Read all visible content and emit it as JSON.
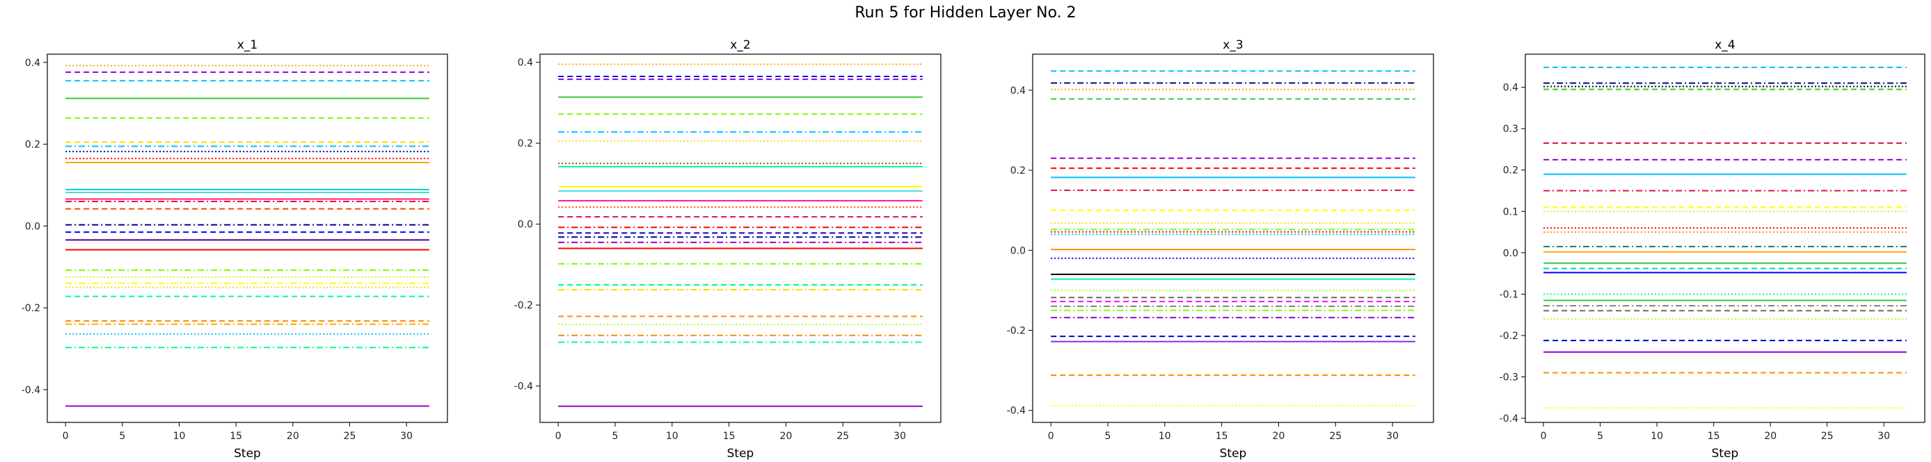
{
  "figure": {
    "suptitle": "Run 5 for Hidden Layer No. 2"
  },
  "chart_data": [
    {
      "type": "line",
      "title": "x_1",
      "xlabel": "Step",
      "ylabel": "",
      "xlim": [
        -1.6,
        33.6
      ],
      "ylim": [
        -0.48,
        0.42
      ],
      "xticks": [
        0,
        5,
        10,
        15,
        20,
        25,
        30
      ],
      "yticks": [
        -0.4,
        -0.2,
        0.0,
        0.2,
        0.4
      ],
      "ytick_labels": [
        "-0.4",
        "-0.2",
        "0.0",
        "0.2",
        "0.4"
      ],
      "x_range": [
        0,
        32
      ],
      "grid": false,
      "series": [
        {
          "value": 0.392,
          "color": "#ffa500",
          "dash": "dotted"
        },
        {
          "value": 0.376,
          "color": "#9400d3",
          "dash": "dashed"
        },
        {
          "value": 0.355,
          "color": "#00bfff",
          "dash": "dashed"
        },
        {
          "value": 0.312,
          "color": "#32cd32",
          "dash": "solid"
        },
        {
          "value": 0.264,
          "color": "#7cfc00",
          "dash": "dashed"
        },
        {
          "value": 0.205,
          "color": "#ffd700",
          "dash": "dashed"
        },
        {
          "value": 0.195,
          "color": "#00bfff",
          "dash": "dashdot"
        },
        {
          "value": 0.182,
          "color": "#0000cd",
          "dash": "dotted"
        },
        {
          "value": 0.165,
          "color": "#ff0000",
          "dash": "dotted"
        },
        {
          "value": 0.155,
          "color": "#ffa500",
          "dash": "solid"
        },
        {
          "value": 0.089,
          "color": "#00ced1",
          "dash": "solid"
        },
        {
          "value": 0.082,
          "color": "#40e0d0",
          "dash": "solid"
        },
        {
          "value": 0.066,
          "color": "#ff1493",
          "dash": "solid"
        },
        {
          "value": 0.06,
          "color": "#ff0000",
          "dash": "dashdot"
        },
        {
          "value": 0.042,
          "color": "#ff4500",
          "dash": "dashed"
        },
        {
          "value": 0.003,
          "color": "#00008b",
          "dash": "dashdot"
        },
        {
          "value": -0.015,
          "color": "#0000ff",
          "dash": "dashed"
        },
        {
          "value": -0.034,
          "color": "#4b0082",
          "dash": "solid"
        },
        {
          "value": -0.058,
          "color": "#ff0000",
          "dash": "solid"
        },
        {
          "value": -0.108,
          "color": "#7cfc00",
          "dash": "dashdot"
        },
        {
          "value": -0.125,
          "color": "#adff2f",
          "dash": "dotted"
        },
        {
          "value": -0.14,
          "color": "#ffff00",
          "dash": "dashdot"
        },
        {
          "value": -0.15,
          "color": "#ffd700",
          "dash": "dotted"
        },
        {
          "value": -0.172,
          "color": "#00fa9a",
          "dash": "dashed"
        },
        {
          "value": -0.232,
          "color": "#ff8c00",
          "dash": "dashed"
        },
        {
          "value": -0.24,
          "color": "#ffa500",
          "dash": "dashdot"
        },
        {
          "value": -0.264,
          "color": "#00bfff",
          "dash": "dotted"
        },
        {
          "value": -0.297,
          "color": "#00ff7f",
          "dash": "dashdot"
        },
        {
          "value": -0.44,
          "color": "#9400d3",
          "dash": "solid"
        }
      ]
    },
    {
      "type": "line",
      "title": "x_2",
      "xlabel": "Step",
      "ylabel": "",
      "xlim": [
        -1.6,
        33.6
      ],
      "ylim": [
        -0.49,
        0.42
      ],
      "xticks": [
        0,
        5,
        10,
        15,
        20,
        25,
        30
      ],
      "yticks": [
        -0.4,
        -0.2,
        0.0,
        0.2,
        0.4
      ],
      "ytick_labels": [
        "-0.4",
        "-0.2",
        "0.0",
        "0.2",
        "0.4"
      ],
      "x_range": [
        0,
        32
      ],
      "grid": false,
      "series": [
        {
          "value": 0.395,
          "color": "#ffa500",
          "dash": "dotted"
        },
        {
          "value": 0.365,
          "color": "#0000ff",
          "dash": "dashed"
        },
        {
          "value": 0.358,
          "color": "#9400d3",
          "dash": "dashed"
        },
        {
          "value": 0.314,
          "color": "#32cd32",
          "dash": "solid"
        },
        {
          "value": 0.272,
          "color": "#7cfc00",
          "dash": "dashed"
        },
        {
          "value": 0.228,
          "color": "#00bfff",
          "dash": "dashdot"
        },
        {
          "value": 0.205,
          "color": "#ffd700",
          "dash": "dotted"
        },
        {
          "value": 0.15,
          "color": "#8b4513",
          "dash": "dotted"
        },
        {
          "value": 0.142,
          "color": "#00fa9a",
          "dash": "solid"
        },
        {
          "value": 0.093,
          "color": "#ffff00",
          "dash": "solid"
        },
        {
          "value": 0.082,
          "color": "#40e0d0",
          "dash": "solid"
        },
        {
          "value": 0.058,
          "color": "#ff1493",
          "dash": "solid"
        },
        {
          "value": 0.042,
          "color": "#ff4500",
          "dash": "dotted"
        },
        {
          "value": 0.018,
          "color": "#dc143c",
          "dash": "dashed"
        },
        {
          "value": -0.008,
          "color": "#ff0000",
          "dash": "dashdot"
        },
        {
          "value": -0.022,
          "color": "#0000cd",
          "dash": "dashed"
        },
        {
          "value": -0.032,
          "color": "#00008b",
          "dash": "dashdot"
        },
        {
          "value": -0.045,
          "color": "#9400d3",
          "dash": "dashdot"
        },
        {
          "value": -0.06,
          "color": "#ff0000",
          "dash": "solid"
        },
        {
          "value": -0.098,
          "color": "#7cfc00",
          "dash": "dashdot"
        },
        {
          "value": -0.15,
          "color": "#00ff7f",
          "dash": "dashed"
        },
        {
          "value": -0.162,
          "color": "#ffd700",
          "dash": "dashdot"
        },
        {
          "value": -0.228,
          "color": "#ff8c00",
          "dash": "dashed"
        },
        {
          "value": -0.248,
          "color": "#adff2f",
          "dash": "dotted"
        },
        {
          "value": -0.275,
          "color": "#ff8c00",
          "dash": "dashdot"
        },
        {
          "value": -0.292,
          "color": "#00fa9a",
          "dash": "dashdot"
        },
        {
          "value": -0.45,
          "color": "#9400d3",
          "dash": "solid"
        }
      ]
    },
    {
      "type": "line",
      "title": "x_3",
      "xlabel": "Step",
      "ylabel": "",
      "xlim": [
        -1.6,
        33.6
      ],
      "ylim": [
        -0.43,
        0.49
      ],
      "xticks": [
        0,
        5,
        10,
        15,
        20,
        25,
        30
      ],
      "yticks": [
        -0.4,
        -0.2,
        0.0,
        0.2,
        0.4
      ],
      "ytick_labels": [
        "-0.4",
        "-0.2",
        "0.0",
        "0.2",
        "0.4"
      ],
      "x_range": [
        0,
        32
      ],
      "grid": false,
      "series": [
        {
          "value": 0.448,
          "color": "#00bfff",
          "dash": "dashed"
        },
        {
          "value": 0.418,
          "color": "#00008b",
          "dash": "dashdot"
        },
        {
          "value": 0.402,
          "color": "#ffa500",
          "dash": "dotted"
        },
        {
          "value": 0.378,
          "color": "#32cd32",
          "dash": "dashed"
        },
        {
          "value": 0.23,
          "color": "#9400d3",
          "dash": "dashed"
        },
        {
          "value": 0.205,
          "color": "#ff0000",
          "dash": "dashed"
        },
        {
          "value": 0.182,
          "color": "#00bfff",
          "dash": "solid"
        },
        {
          "value": 0.15,
          "color": "#dc143c",
          "dash": "dashdot"
        },
        {
          "value": 0.1,
          "color": "#ffff00",
          "dash": "dashed"
        },
        {
          "value": 0.068,
          "color": "#ffd700",
          "dash": "dotted"
        },
        {
          "value": 0.052,
          "color": "#7cfc00",
          "dash": "dashdot"
        },
        {
          "value": 0.046,
          "color": "#ff0000",
          "dash": "dotted"
        },
        {
          "value": 0.04,
          "color": "#00ced1",
          "dash": "dotted"
        },
        {
          "value": 0.002,
          "color": "#ff8c00",
          "dash": "solid"
        },
        {
          "value": -0.02,
          "color": "#0000ff",
          "dash": "dotted"
        },
        {
          "value": -0.06,
          "color": "#000000",
          "dash": "solid"
        },
        {
          "value": -0.072,
          "color": "#00fa9a",
          "dash": "solid"
        },
        {
          "value": -0.1,
          "color": "#adff2f",
          "dash": "dotted"
        },
        {
          "value": -0.118,
          "color": "#696969",
          "dash": "dashed"
        },
        {
          "value": -0.128,
          "color": "#ff00ff",
          "dash": "dashed"
        },
        {
          "value": -0.14,
          "color": "#808080",
          "dash": "dashdot"
        },
        {
          "value": -0.15,
          "color": "#7fff00",
          "dash": "dashdot"
        },
        {
          "value": -0.168,
          "color": "#9400d3",
          "dash": "dashdot"
        },
        {
          "value": -0.215,
          "color": "#0000cd",
          "dash": "dashed"
        },
        {
          "value": -0.228,
          "color": "#8a2be2",
          "dash": "solid"
        },
        {
          "value": -0.312,
          "color": "#ff8c00",
          "dash": "dashed"
        },
        {
          "value": -0.388,
          "color": "#ffff00",
          "dash": "dotted"
        }
      ]
    },
    {
      "type": "line",
      "title": "x_4",
      "xlabel": "Step",
      "ylabel": "",
      "xlim": [
        -1.6,
        33.6
      ],
      "ylim": [
        -0.41,
        0.48
      ],
      "xticks": [
        0,
        5,
        10,
        15,
        20,
        25,
        30
      ],
      "yticks": [
        -0.4,
        -0.3,
        -0.2,
        -0.1,
        0.0,
        0.1,
        0.2,
        0.3,
        0.4
      ],
      "ytick_labels": [
        "-0.4",
        "-0.3",
        "-0.2",
        "-0.1",
        "0.0",
        "0.1",
        "0.2",
        "0.3",
        "0.4"
      ],
      "x_range": [
        0,
        32
      ],
      "grid": false,
      "series": [
        {
          "value": 0.448,
          "color": "#00bfff",
          "dash": "dashed"
        },
        {
          "value": 0.41,
          "color": "#00008b",
          "dash": "dashdot"
        },
        {
          "value": 0.402,
          "color": "#000000",
          "dash": "dotted"
        },
        {
          "value": 0.395,
          "color": "#32cd32",
          "dash": "dashed"
        },
        {
          "value": 0.265,
          "color": "#dc143c",
          "dash": "dashed"
        },
        {
          "value": 0.225,
          "color": "#9400d3",
          "dash": "dashed"
        },
        {
          "value": 0.19,
          "color": "#00bfff",
          "dash": "solid"
        },
        {
          "value": 0.15,
          "color": "#dc143c",
          "dash": "dashdot"
        },
        {
          "value": 0.11,
          "color": "#ffff00",
          "dash": "dashed"
        },
        {
          "value": 0.1,
          "color": "#adff2f",
          "dash": "dotted"
        },
        {
          "value": 0.06,
          "color": "#ff0000",
          "dash": "dotted"
        },
        {
          "value": 0.05,
          "color": "#ff8c00",
          "dash": "dotted"
        },
        {
          "value": 0.015,
          "color": "#008080",
          "dash": "dashdot"
        },
        {
          "value": 0.002,
          "color": "#ffa500",
          "dash": "solid"
        },
        {
          "value": -0.025,
          "color": "#32cd32",
          "dash": "solid"
        },
        {
          "value": -0.038,
          "color": "#00ced1",
          "dash": "dashed"
        },
        {
          "value": -0.048,
          "color": "#0000ff",
          "dash": "solid"
        },
        {
          "value": -0.1,
          "color": "#00fa9a",
          "dash": "dotted"
        },
        {
          "value": -0.115,
          "color": "#32cd32",
          "dash": "solid"
        },
        {
          "value": -0.128,
          "color": "#808080",
          "dash": "dashdot"
        },
        {
          "value": -0.14,
          "color": "#696969",
          "dash": "dashed"
        },
        {
          "value": -0.16,
          "color": "#adff2f",
          "dash": "dotted"
        },
        {
          "value": -0.212,
          "color": "#0000cd",
          "dash": "dashed"
        },
        {
          "value": -0.24,
          "color": "#9400d3",
          "dash": "solid"
        },
        {
          "value": -0.29,
          "color": "#ff8c00",
          "dash": "dashed"
        },
        {
          "value": -0.375,
          "color": "#ffff00",
          "dash": "dotted"
        }
      ]
    }
  ]
}
